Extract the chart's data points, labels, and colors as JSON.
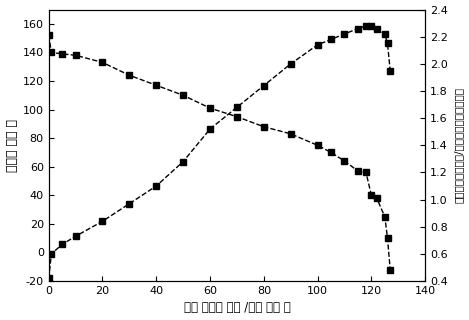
{
  "voltage_x": [
    0,
    1,
    5,
    10,
    20,
    30,
    40,
    50,
    60,
    70,
    80,
    90,
    100,
    105,
    110,
    115,
    118,
    120,
    122,
    125,
    126,
    127
  ],
  "voltage_y": [
    152,
    140,
    139,
    138,
    133,
    124,
    117,
    110,
    101,
    95,
    88,
    83,
    75,
    70,
    64,
    57,
    56,
    40,
    38,
    25,
    10,
    -12
  ],
  "power_x": [
    0,
    1,
    5,
    10,
    20,
    30,
    40,
    50,
    60,
    70,
    80,
    90,
    100,
    105,
    110,
    115,
    118,
    120,
    122,
    125,
    126,
    127
  ],
  "power_y": [
    0.42,
    0.6,
    0.67,
    0.73,
    0.84,
    0.97,
    1.1,
    1.28,
    1.52,
    1.68,
    1.84,
    2.0,
    2.14,
    2.18,
    2.22,
    2.26,
    2.28,
    2.28,
    2.26,
    2.22,
    2.15,
    1.95
  ],
  "xlabel": "电流 密度（ 毫安 /平方 厘米 ）",
  "ylabel_left": "电压（ 伏特 ）",
  "ylabel_right_lines": [
    "（",
    "功率密度",
    "（瓦特/平方厘米）",
    "平方厘米）"
  ],
  "xlim": [
    0,
    140
  ],
  "ylim_left": [
    -20,
    170
  ],
  "ylim_right": [
    0.4,
    2.4
  ],
  "xticks": [
    0,
    20,
    40,
    60,
    80,
    100,
    120,
    140
  ],
  "yticks_left": [
    -20,
    0,
    20,
    40,
    60,
    80,
    100,
    120,
    140,
    160
  ],
  "yticks_right": [
    0.4,
    0.6,
    0.8,
    1.0,
    1.2,
    1.4,
    1.6,
    1.8,
    2.0,
    2.2,
    2.4
  ],
  "line_color": "#000000",
  "marker": "s",
  "markersize": 4,
  "linewidth": 1.0,
  "bg_color": "#ffffff"
}
